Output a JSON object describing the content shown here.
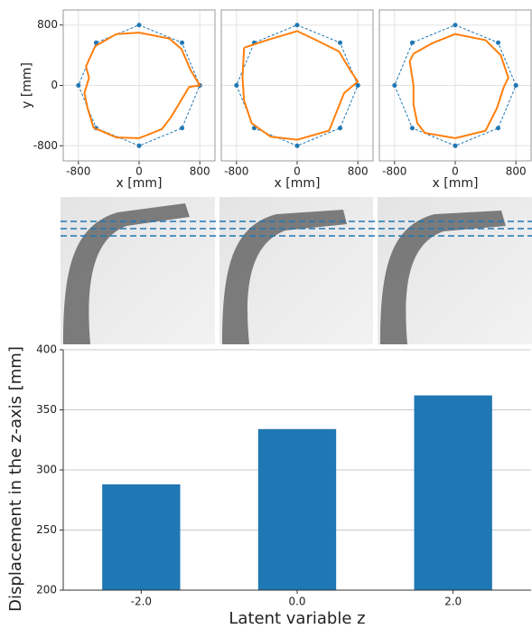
{
  "chart_data": [
    {
      "type": "line",
      "xlabel": "x [mm]",
      "ylabel": "y [mm]",
      "xlim": [
        -1000,
        1000
      ],
      "ylim": [
        -1000,
        1000
      ],
      "xticks": [
        -800,
        0,
        800
      ],
      "yticks": [
        -800,
        0,
        800
      ],
      "grid": true,
      "show_ytick_labels": true,
      "series": [
        {
          "color": "#1f77b4",
          "style": "dashed-markers",
          "x": [
            800,
            566,
            0,
            -566,
            -800,
            -566,
            0,
            566,
            800
          ],
          "values": [
            0,
            566,
            800,
            566,
            0,
            -566,
            -800,
            -566,
            0
          ]
        },
        {
          "color": "#ff7f0e",
          "style": "solid",
          "x": [
            -580,
            -300,
            0,
            400,
            560,
            680,
            800,
            660,
            420,
            300,
            0,
            -300,
            -600,
            -680,
            -720,
            -660,
            -700,
            -580
          ],
          "values": [
            520,
            680,
            700,
            620,
            480,
            200,
            0,
            -20,
            -420,
            -580,
            -700,
            -690,
            -560,
            -300,
            -100,
            100,
            250,
            520
          ]
        }
      ]
    },
    {
      "type": "line",
      "xlabel": "x [mm]",
      "xlim": [
        -1000,
        1000
      ],
      "ylim": [
        -1000,
        1000
      ],
      "xticks": [
        -800,
        0,
        800
      ],
      "yticks": [
        -800,
        0,
        800
      ],
      "grid": true,
      "show_ytick_labels": false,
      "series": [
        {
          "color": "#1f77b4",
          "style": "dashed-markers",
          "x": [
            800,
            566,
            0,
            -566,
            -800,
            -566,
            0,
            566,
            800
          ],
          "values": [
            0,
            566,
            800,
            566,
            0,
            -566,
            -800,
            -566,
            0
          ]
        },
        {
          "color": "#ff7f0e",
          "style": "solid",
          "x": [
            -700,
            -400,
            0,
            250,
            550,
            700,
            800,
            620,
            420,
            0,
            -350,
            -600,
            -700,
            -720,
            -700
          ],
          "values": [
            500,
            600,
            720,
            600,
            450,
            200,
            50,
            -100,
            -600,
            -720,
            -680,
            -500,
            -200,
            100,
            500
          ]
        }
      ]
    },
    {
      "type": "line",
      "xlabel": "x [mm]",
      "xlim": [
        -1000,
        1000
      ],
      "ylim": [
        -1000,
        1000
      ],
      "xticks": [
        -800,
        0,
        800
      ],
      "yticks": [
        -800,
        0,
        800
      ],
      "grid": true,
      "show_ytick_labels": false,
      "series": [
        {
          "color": "#1f77b4",
          "style": "dashed-markers",
          "x": [
            800,
            566,
            0,
            -566,
            -800,
            -566,
            0,
            566,
            800
          ],
          "values": [
            0,
            566,
            800,
            566,
            0,
            -566,
            -800,
            -566,
            0
          ]
        },
        {
          "color": "#ff7f0e",
          "style": "solid",
          "x": [
            -550,
            -300,
            0,
            400,
            600,
            700,
            640,
            550,
            400,
            0,
            -400,
            -500,
            -550,
            -550,
            -600,
            -550
          ],
          "values": [
            420,
            560,
            680,
            600,
            400,
            100,
            -20,
            -300,
            -600,
            -700,
            -630,
            -500,
            -250,
            0,
            320,
            420
          ]
        }
      ]
    },
    {
      "type": "bar",
      "xlabel": "Latent variable z",
      "ylabel": "Displacement in the z-axis [mm]",
      "categories": [
        "-2.0",
        "0.0",
        "2.0"
      ],
      "values": [
        288,
        334,
        362
      ],
      "color": "#1f77b4",
      "ylim": [
        200,
        400
      ],
      "yticks": [
        200,
        250,
        300,
        350,
        400
      ],
      "grid": true
    }
  ]
}
